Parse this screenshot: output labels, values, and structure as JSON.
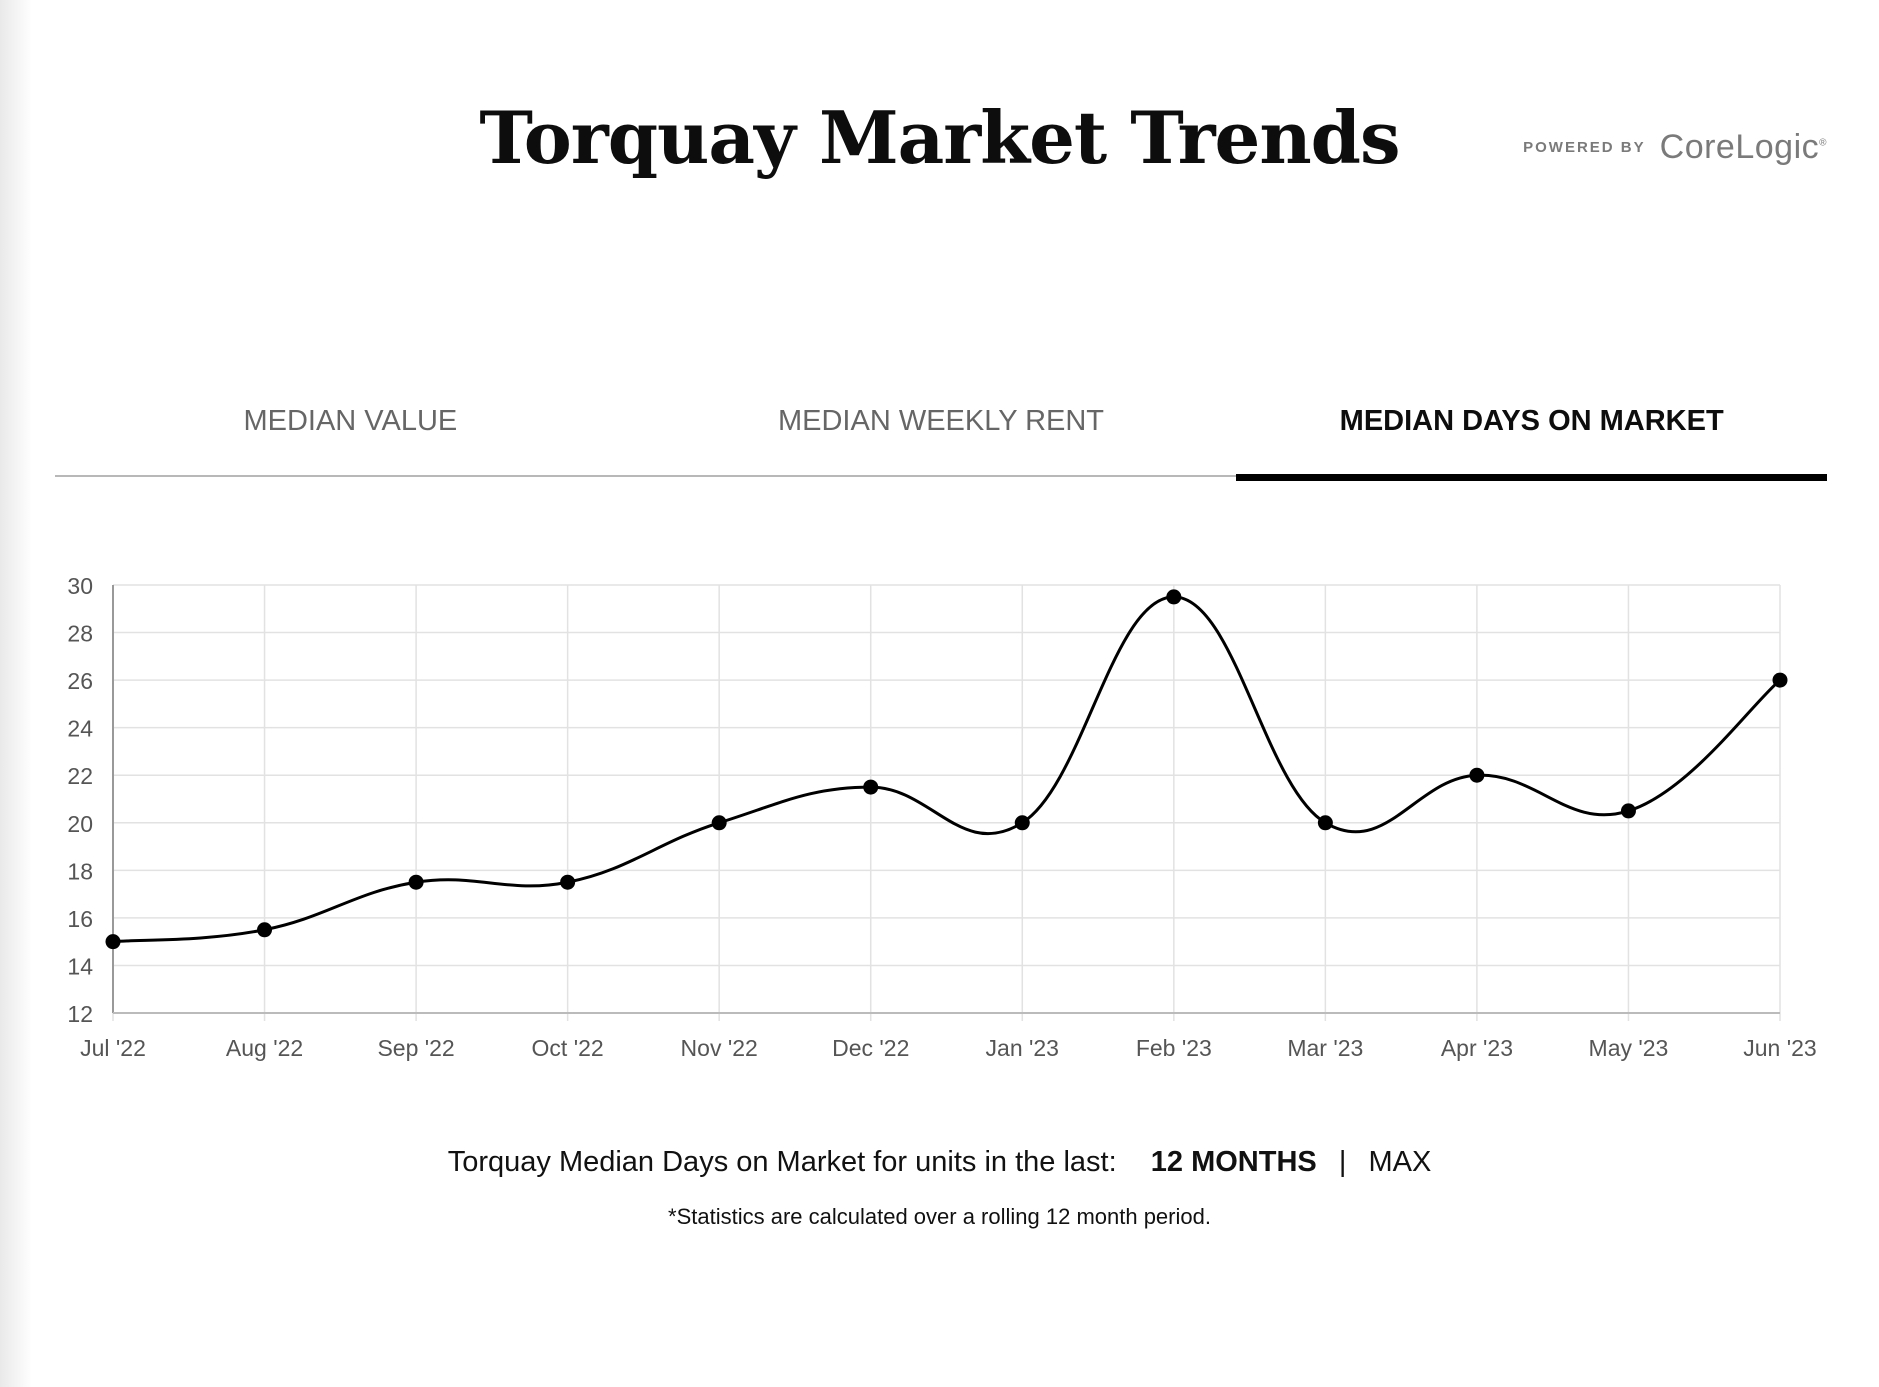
{
  "header": {
    "title": "Torquay Market Trends",
    "powered_by": "POWERED BY",
    "brand": "CoreLogic",
    "brand_mark": "®"
  },
  "tabs": [
    {
      "label": "MEDIAN VALUE",
      "active": false
    },
    {
      "label": "MEDIAN WEEKLY RENT",
      "active": false
    },
    {
      "label": "MEDIAN DAYS ON MARKET",
      "active": true
    }
  ],
  "footer": {
    "caption": "Torquay Median Days on Market for units in the last:",
    "option_12": "12 MONTHS",
    "separator": "|",
    "option_max": "MAX",
    "note": "*Statistics are calculated over a rolling 12 month period."
  },
  "chart_data": {
    "type": "line",
    "categories": [
      "Jul '22",
      "Aug '22",
      "Sep '22",
      "Oct '22",
      "Nov '22",
      "Dec '22",
      "Jan '23",
      "Feb '23",
      "Mar '23",
      "Apr '23",
      "May '23",
      "Jun '23"
    ],
    "series": [
      {
        "values": [
          15,
          15.5,
          17.5,
          17.5,
          20,
          21.5,
          20,
          29.5,
          20,
          22,
          20.5,
          26
        ]
      }
    ],
    "ylim": [
      12,
      30
    ],
    "yticks": [
      12,
      14,
      16,
      18,
      20,
      22,
      24,
      26,
      28,
      30
    ],
    "grid": true,
    "line_color": "#000000",
    "grid_color": "#e2e2e2"
  }
}
